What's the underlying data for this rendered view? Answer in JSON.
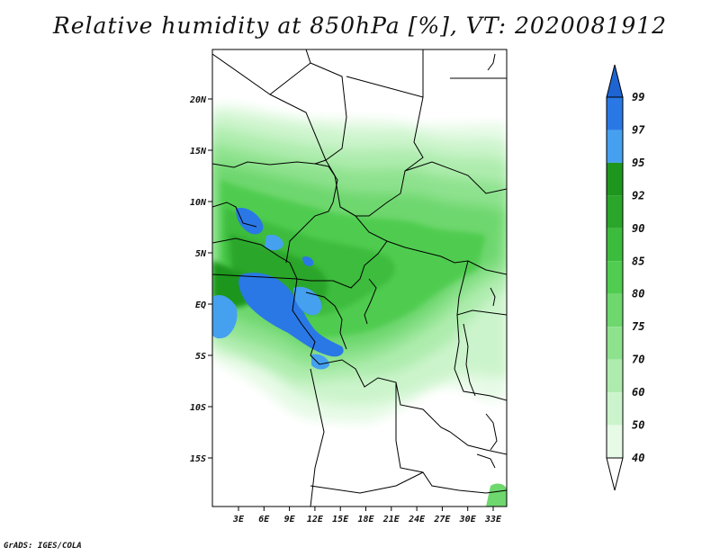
{
  "title": "Relative humidity at 850hPa [%], VT: 2020081912",
  "credit": "GrADS: IGES/COLA",
  "map": {
    "lat_labels": [
      "20N",
      "15N",
      "10N",
      "5N",
      "EQ",
      "5S",
      "10S",
      "15S"
    ],
    "lon_labels": [
      "3E",
      "6E",
      "9E",
      "12E",
      "15E",
      "18E",
      "21E",
      "24E",
      "27E",
      "30E",
      "33E"
    ]
  },
  "colorbar": {
    "labels": [
      "99",
      "97",
      "95",
      "92",
      "90",
      "85",
      "80",
      "75",
      "70",
      "60",
      "50",
      "40"
    ],
    "colors": [
      "#1e64d2",
      "#2a78e6",
      "#46a0f0",
      "#1e961e",
      "#2aa62a",
      "#3cbc3c",
      "#50cc50",
      "#6ed76e",
      "#8ee28e",
      "#aeecae",
      "#ccf4cc",
      "#e6fae6",
      "#ffffff"
    ],
    "top_arrow_color": "#1e64d2",
    "bottom_arrow_color": "#ffffff"
  }
}
